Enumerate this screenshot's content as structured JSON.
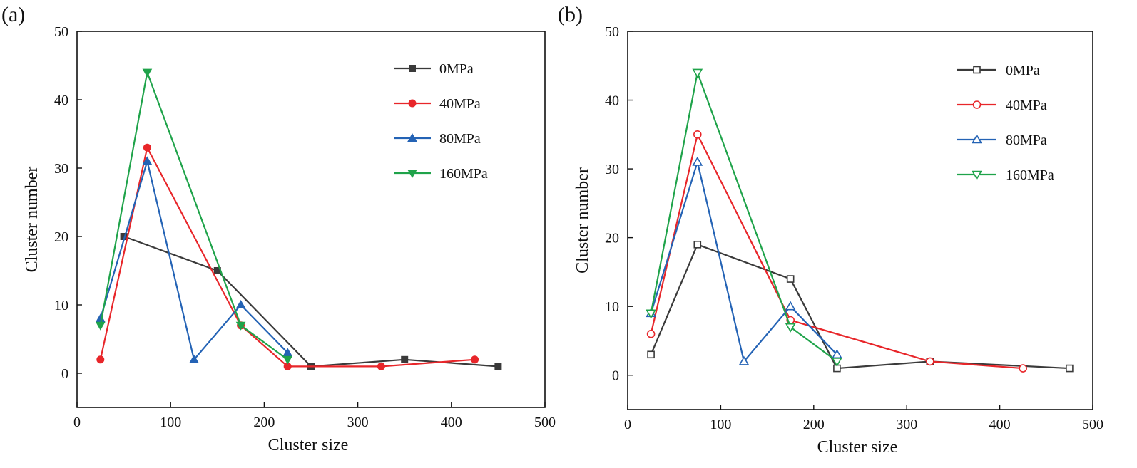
{
  "chart_data": [
    {
      "panel_label": "(a)",
      "type": "line",
      "xlabel": "Cluster size",
      "ylabel": "Cluster number",
      "xlim": [
        0,
        500
      ],
      "ylim": [
        -5,
        50
      ],
      "xticks": [
        0,
        100,
        200,
        300,
        400,
        500
      ],
      "yticks": [
        0,
        10,
        20,
        30,
        40,
        50
      ],
      "marker_fill": "filled",
      "legend_position": "top-right",
      "series": [
        {
          "name": "0MPa",
          "color": "#3a3a3a",
          "marker": "square",
          "x": [
            50,
            150,
            250,
            350,
            450
          ],
          "y": [
            20,
            15,
            1,
            2,
            1
          ]
        },
        {
          "name": "40MPa",
          "color": "#e8262a",
          "marker": "circle",
          "x": [
            25,
            75,
            175,
            225,
            325,
            425
          ],
          "y": [
            2,
            33,
            7,
            1,
            1,
            2
          ]
        },
        {
          "name": "80MPa",
          "color": "#2463b5",
          "marker": "triangle-up",
          "x": [
            25,
            75,
            125,
            175,
            225
          ],
          "y": [
            8,
            31,
            2,
            10,
            3
          ]
        },
        {
          "name": "160MPa",
          "color": "#1fa34a",
          "marker": "triangle-down",
          "x": [
            25,
            75,
            175,
            225
          ],
          "y": [
            7,
            44,
            7,
            2
          ]
        }
      ]
    },
    {
      "panel_label": "(b)",
      "type": "line",
      "xlabel": "Cluster size",
      "ylabel": "Cluster number",
      "xlim": [
        0,
        500
      ],
      "ylim": [
        -5,
        50
      ],
      "xticks": [
        0,
        100,
        200,
        300,
        400,
        500
      ],
      "yticks": [
        0,
        10,
        20,
        30,
        40,
        50
      ],
      "marker_fill": "open",
      "legend_position": "top-right",
      "series": [
        {
          "name": "0MPa",
          "color": "#3a3a3a",
          "marker": "square",
          "x": [
            25,
            75,
            175,
            225,
            325,
            475
          ],
          "y": [
            3,
            19,
            14,
            1,
            2,
            1
          ]
        },
        {
          "name": "40MPa",
          "color": "#e8262a",
          "marker": "circle",
          "x": [
            25,
            75,
            175,
            325,
            425
          ],
          "y": [
            6,
            35,
            8,
            2,
            1
          ]
        },
        {
          "name": "80MPa",
          "color": "#2463b5",
          "marker": "triangle-up",
          "x": [
            25,
            75,
            125,
            175,
            225
          ],
          "y": [
            9,
            31,
            2,
            10,
            3
          ]
        },
        {
          "name": "160MPa",
          "color": "#1fa34a",
          "marker": "triangle-down",
          "x": [
            25,
            75,
            175,
            225
          ],
          "y": [
            9,
            44,
            7,
            2
          ]
        }
      ]
    }
  ]
}
